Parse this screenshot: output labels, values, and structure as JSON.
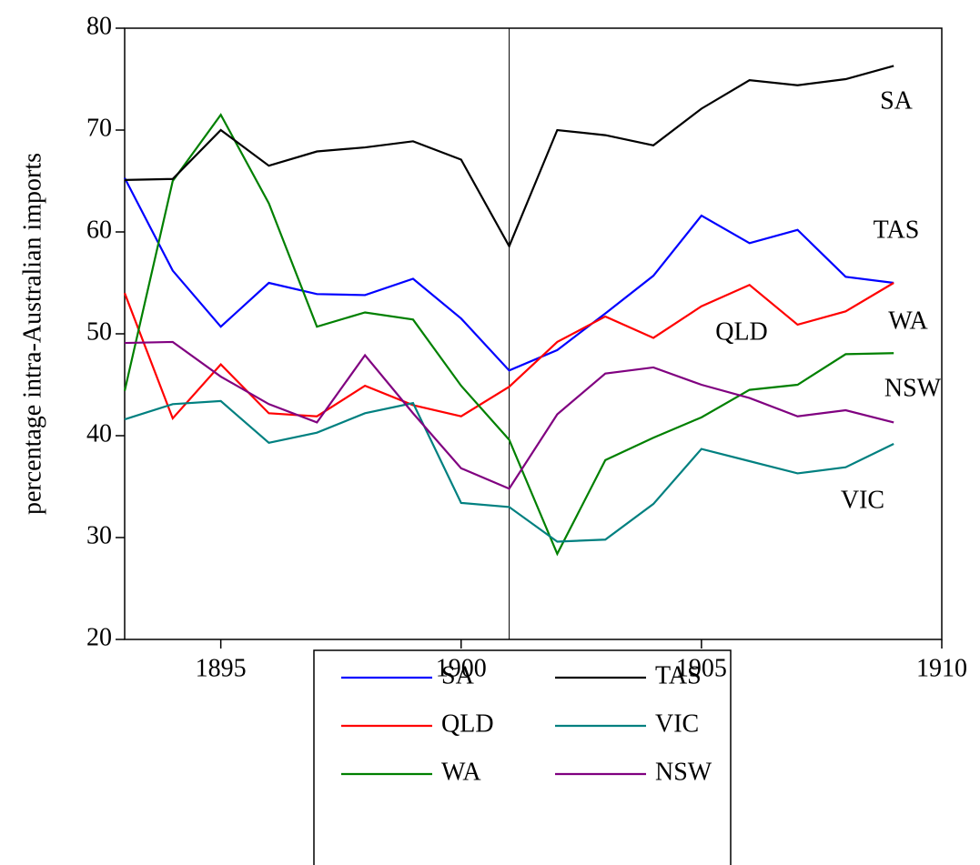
{
  "chart_data": {
    "type": "line",
    "y_label": "percentage intra-Australian imports",
    "x": [
      1893,
      1894,
      1895,
      1896,
      1897,
      1898,
      1899,
      1900,
      1901,
      1902,
      1903,
      1904,
      1905,
      1906,
      1907,
      1908,
      1909
    ],
    "xlim": [
      1893,
      1910
    ],
    "xticks": [
      1895,
      1900,
      1905,
      1910
    ],
    "ylim": [
      20,
      80
    ],
    "yticks": [
      20,
      30,
      40,
      50,
      60,
      70,
      80
    ],
    "vline": 1901,
    "series": [
      {
        "name": "SA",
        "color": "#0000ff",
        "values": [
          65.3,
          56.2,
          50.7,
          55.0,
          53.9,
          53.8,
          55.4,
          51.5,
          46.4,
          48.4,
          52.0,
          55.7,
          61.6,
          58.9,
          60.2,
          55.6,
          55.0
        ]
      },
      {
        "name": "QLD",
        "color": "#ff0000",
        "values": [
          54.0,
          41.7,
          47.0,
          42.2,
          41.9,
          44.9,
          43.0,
          41.9,
          44.8,
          49.2,
          51.7,
          49.6,
          52.7,
          54.8,
          50.9,
          52.2,
          55.0
        ]
      },
      {
        "name": "WA",
        "color": "#008000",
        "values": [
          44.4,
          65.0,
          71.5,
          62.8,
          50.7,
          52.1,
          51.4,
          44.9,
          39.6,
          28.4,
          37.6,
          39.8,
          41.8,
          44.5,
          45.0,
          48.0,
          48.1
        ]
      },
      {
        "name": "TAS",
        "color": "#000000",
        "values": [
          65.1,
          65.2,
          70.0,
          66.5,
          67.9,
          68.3,
          68.9,
          67.1,
          58.6,
          70.0,
          69.5,
          68.5,
          72.1,
          74.9,
          74.4,
          75.0,
          76.3
        ]
      },
      {
        "name": "VIC",
        "color": "#008080",
        "values": [
          41.6,
          43.1,
          43.4,
          39.3,
          40.3,
          42.2,
          43.2,
          33.4,
          33.0,
          29.6,
          29.8,
          33.3,
          38.7,
          37.5,
          36.3,
          36.9,
          39.2
        ]
      },
      {
        "name": "NSW",
        "color": "#800080",
        "values": [
          49.1,
          49.2,
          45.8,
          43.1,
          41.3,
          47.9,
          42.2,
          36.8,
          34.8,
          42.1,
          46.1,
          46.7,
          45.0,
          43.7,
          41.9,
          42.5,
          41.3
        ]
      }
    ]
  }
}
